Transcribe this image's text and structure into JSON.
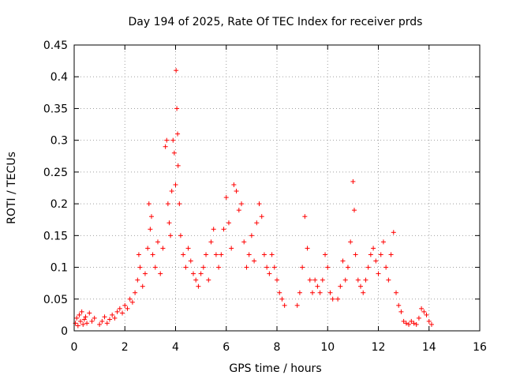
{
  "chart_data": {
    "type": "scatter",
    "title": "Day 194 of 2025, Rate Of TEC Index for receiver prds",
    "xlabel": "GPS time / hours",
    "ylabel": "ROTI / TECUs",
    "xlim": [
      0,
      16
    ],
    "ylim": [
      0,
      0.45
    ],
    "xticks": [
      0,
      2,
      4,
      6,
      8,
      10,
      12,
      14,
      16
    ],
    "yticks": [
      0,
      0.05,
      0.1,
      0.15,
      0.2,
      0.25,
      0.3,
      0.35,
      0.4,
      0.45
    ],
    "xtick_labels": [
      "0",
      "2",
      "4",
      "6",
      "8",
      "10",
      "12",
      "14",
      "16"
    ],
    "ytick_labels": [
      "0",
      "0.05",
      "0.1",
      "0.15",
      "0.2",
      "0.25",
      "0.3",
      "0.35",
      "0.4",
      "0.45"
    ],
    "grid": true,
    "marker": "+",
    "color": "#ff0000",
    "series": [
      {
        "name": "ROTI",
        "points": [
          [
            0.05,
            0.012
          ],
          [
            0.1,
            0.02
          ],
          [
            0.15,
            0.008
          ],
          [
            0.2,
            0.025
          ],
          [
            0.25,
            0.015
          ],
          [
            0.3,
            0.03
          ],
          [
            0.35,
            0.01
          ],
          [
            0.4,
            0.018
          ],
          [
            0.45,
            0.022
          ],
          [
            0.5,
            0.012
          ],
          [
            0.6,
            0.028
          ],
          [
            0.7,
            0.015
          ],
          [
            0.8,
            0.02
          ],
          [
            1.0,
            0.01
          ],
          [
            1.1,
            0.015
          ],
          [
            1.2,
            0.022
          ],
          [
            1.3,
            0.012
          ],
          [
            1.4,
            0.018
          ],
          [
            1.5,
            0.025
          ],
          [
            1.6,
            0.02
          ],
          [
            1.7,
            0.03
          ],
          [
            1.8,
            0.035
          ],
          [
            1.9,
            0.028
          ],
          [
            2.0,
            0.04
          ],
          [
            2.1,
            0.035
          ],
          [
            2.2,
            0.05
          ],
          [
            2.3,
            0.045
          ],
          [
            2.4,
            0.06
          ],
          [
            2.5,
            0.08
          ],
          [
            2.55,
            0.12
          ],
          [
            2.6,
            0.1
          ],
          [
            2.7,
            0.07
          ],
          [
            2.8,
            0.09
          ],
          [
            2.9,
            0.13
          ],
          [
            2.95,
            0.2
          ],
          [
            3.0,
            0.16
          ],
          [
            3.05,
            0.18
          ],
          [
            3.1,
            0.12
          ],
          [
            3.2,
            0.1
          ],
          [
            3.3,
            0.14
          ],
          [
            3.4,
            0.09
          ],
          [
            3.5,
            0.13
          ],
          [
            3.6,
            0.29
          ],
          [
            3.65,
            0.3
          ],
          [
            3.7,
            0.2
          ],
          [
            3.75,
            0.17
          ],
          [
            3.8,
            0.15
          ],
          [
            3.85,
            0.22
          ],
          [
            3.9,
            0.3
          ],
          [
            3.95,
            0.28
          ],
          [
            4.0,
            0.23
          ],
          [
            4.02,
            0.41
          ],
          [
            4.05,
            0.35
          ],
          [
            4.08,
            0.31
          ],
          [
            4.1,
            0.26
          ],
          [
            4.15,
            0.2
          ],
          [
            4.2,
            0.15
          ],
          [
            4.3,
            0.12
          ],
          [
            4.4,
            0.1
          ],
          [
            4.5,
            0.13
          ],
          [
            4.6,
            0.11
          ],
          [
            4.7,
            0.09
          ],
          [
            4.8,
            0.08
          ],
          [
            4.9,
            0.07
          ],
          [
            5.0,
            0.09
          ],
          [
            5.1,
            0.1
          ],
          [
            5.2,
            0.12
          ],
          [
            5.3,
            0.08
          ],
          [
            5.4,
            0.14
          ],
          [
            5.5,
            0.16
          ],
          [
            5.6,
            0.12
          ],
          [
            5.7,
            0.1
          ],
          [
            5.8,
            0.12
          ],
          [
            5.9,
            0.16
          ],
          [
            6.0,
            0.21
          ],
          [
            6.1,
            0.17
          ],
          [
            6.2,
            0.13
          ],
          [
            6.3,
            0.23
          ],
          [
            6.4,
            0.22
          ],
          [
            6.5,
            0.19
          ],
          [
            6.6,
            0.2
          ],
          [
            6.7,
            0.14
          ],
          [
            6.8,
            0.1
          ],
          [
            6.9,
            0.12
          ],
          [
            7.0,
            0.15
          ],
          [
            7.1,
            0.11
          ],
          [
            7.2,
            0.17
          ],
          [
            7.3,
            0.2
          ],
          [
            7.4,
            0.18
          ],
          [
            7.5,
            0.12
          ],
          [
            7.6,
            0.1
          ],
          [
            7.7,
            0.09
          ],
          [
            7.8,
            0.12
          ],
          [
            7.9,
            0.1
          ],
          [
            8.0,
            0.08
          ],
          [
            8.1,
            0.06
          ],
          [
            8.2,
            0.05
          ],
          [
            8.3,
            0.04
          ],
          [
            8.8,
            0.04
          ],
          [
            8.9,
            0.06
          ],
          [
            9.0,
            0.1
          ],
          [
            9.1,
            0.18
          ],
          [
            9.2,
            0.13
          ],
          [
            9.3,
            0.08
          ],
          [
            9.4,
            0.06
          ],
          [
            9.5,
            0.08
          ],
          [
            9.6,
            0.07
          ],
          [
            9.7,
            0.06
          ],
          [
            9.8,
            0.08
          ],
          [
            9.9,
            0.12
          ],
          [
            10.0,
            0.1
          ],
          [
            10.1,
            0.06
          ],
          [
            10.2,
            0.05
          ],
          [
            10.4,
            0.05
          ],
          [
            10.5,
            0.07
          ],
          [
            10.6,
            0.11
          ],
          [
            10.7,
            0.08
          ],
          [
            10.8,
            0.1
          ],
          [
            10.9,
            0.14
          ],
          [
            11.0,
            0.235
          ],
          [
            11.05,
            0.19
          ],
          [
            11.1,
            0.12
          ],
          [
            11.2,
            0.08
          ],
          [
            11.3,
            0.07
          ],
          [
            11.4,
            0.06
          ],
          [
            11.5,
            0.08
          ],
          [
            11.6,
            0.1
          ],
          [
            11.7,
            0.12
          ],
          [
            11.8,
            0.13
          ],
          [
            11.9,
            0.11
          ],
          [
            12.0,
            0.09
          ],
          [
            12.1,
            0.12
          ],
          [
            12.2,
            0.14
          ],
          [
            12.3,
            0.1
          ],
          [
            12.4,
            0.08
          ],
          [
            12.5,
            0.12
          ],
          [
            12.6,
            0.155
          ],
          [
            12.7,
            0.06
          ],
          [
            12.8,
            0.04
          ],
          [
            12.9,
            0.03
          ],
          [
            13.0,
            0.015
          ],
          [
            13.1,
            0.012
          ],
          [
            13.2,
            0.01
          ],
          [
            13.3,
            0.015
          ],
          [
            13.4,
            0.012
          ],
          [
            13.5,
            0.01
          ],
          [
            13.6,
            0.02
          ],
          [
            13.7,
            0.035
          ],
          [
            13.8,
            0.03
          ],
          [
            13.9,
            0.025
          ],
          [
            14.0,
            0.015
          ],
          [
            14.1,
            0.01
          ]
        ]
      }
    ]
  }
}
